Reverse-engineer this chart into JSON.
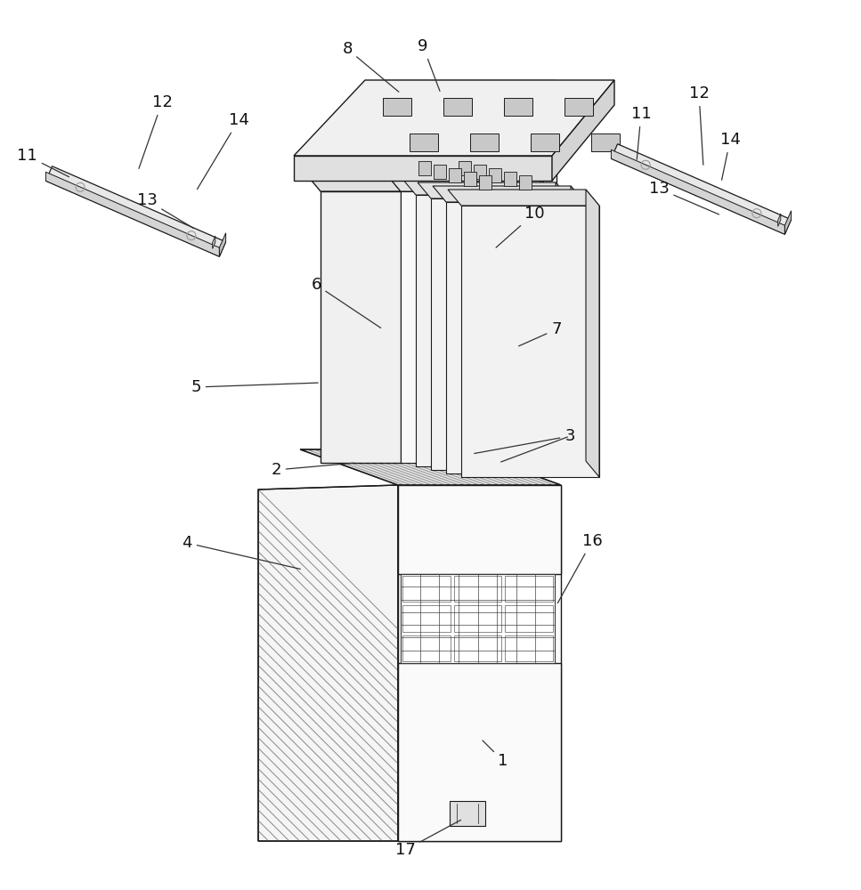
{
  "bg_color": "#ffffff",
  "line_color": "#1a1a1a",
  "lw": 1.0,
  "label_fontsize": 13,
  "gray_light": "#f2f2f2",
  "gray_mid": "#e0e0e0",
  "gray_dark": "#cccccc",
  "gray_side": "#d8d8d8",
  "hatch_color": "#888888",
  "bracket_face": "#e8e8e8",
  "bracket_top": "#d4d4d4",
  "bracket_side": "#c0c0c0"
}
